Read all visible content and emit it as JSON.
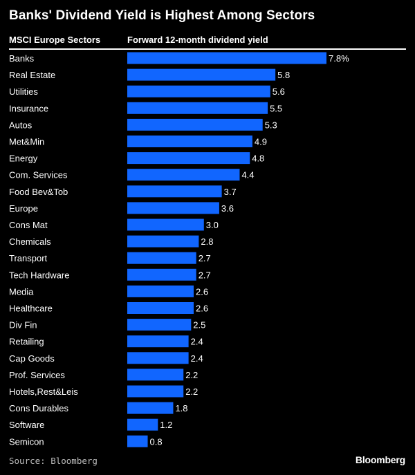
{
  "title": "Banks' Dividend Yield is Highest Among Sectors",
  "header": {
    "left": "MSCI Europe Sectors",
    "right": "Forward 12-month dividend yield"
  },
  "source": "Source: Bloomberg",
  "logo": "Bloomberg",
  "colors": {
    "bar": "#1166ff",
    "background": "#000000",
    "text": "#ffffff"
  },
  "chart_data": {
    "type": "bar",
    "orientation": "horizontal",
    "categories": [
      "Banks",
      "Real Estate",
      "Utilities",
      "Insurance",
      "Autos",
      "Met&Min",
      "Energy",
      "Com. Services",
      "Food Bev&Tob",
      "Europe",
      "Cons Mat",
      "Chemicals",
      "Transport",
      "Tech Hardware",
      "Media",
      "Healthcare",
      "Div Fin",
      "Retailing",
      "Cap Goods",
      "Prof. Services",
      "Hotels,Rest&Leis",
      "Cons Durables",
      "Software",
      "Semicon"
    ],
    "values": [
      7.8,
      5.8,
      5.6,
      5.5,
      5.3,
      4.9,
      4.8,
      4.4,
      3.7,
      3.6,
      3.0,
      2.8,
      2.7,
      2.7,
      2.6,
      2.6,
      2.5,
      2.4,
      2.4,
      2.2,
      2.2,
      1.8,
      1.2,
      0.8
    ],
    "labels": [
      "7.8%",
      "5.8",
      "5.6",
      "5.5",
      "5.3",
      "4.9",
      "4.8",
      "4.4",
      "3.7",
      "3.6",
      "3.0",
      "2.8",
      "2.7",
      "2.7",
      "2.6",
      "2.6",
      "2.5",
      "2.4",
      "2.4",
      "2.2",
      "2.2",
      "1.8",
      "1.2",
      "0.8"
    ],
    "title": "Banks' Dividend Yield is Highest Among Sectors",
    "xlabel": "Forward 12-month dividend yield",
    "ylabel": "MSCI Europe Sectors",
    "xlim": [
      0,
      7.8
    ],
    "grid": false,
    "legend": "none"
  }
}
